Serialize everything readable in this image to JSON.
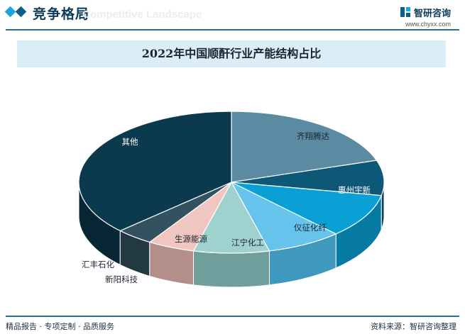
{
  "header": {
    "section_title": "竞争格局",
    "section_subtitle": "Competitive Landscape",
    "brand_name": "智研咨询",
    "brand_url": "www.chyxx.com"
  },
  "chart_data": {
    "type": "pie",
    "title": "2022年中国顺酐行业产能结构占比",
    "slices": [
      {
        "label": "齐翔腾达",
        "value": 20,
        "color": "#5b8aa3",
        "side": "#3f6d86"
      },
      {
        "label": "惠州宇新",
        "value": 8,
        "color": "#0e5877",
        "side": "#0a3e54"
      },
      {
        "label": "仪征化纤",
        "value": 10,
        "color": "#0aa0d6",
        "side": "#077aa3"
      },
      {
        "label": "江宁化工",
        "value": 8,
        "color": "#66c4ec",
        "side": "#3f98bd"
      },
      {
        "label": "生源能源",
        "value": 8,
        "color": "#9fd1cf",
        "side": "#6f9e9c"
      },
      {
        "label": "新阳科技",
        "value": 5,
        "color": "#efc6c0",
        "side": "#b48e88"
      },
      {
        "label": "汇丰石化",
        "value": 4,
        "color": "#33525f",
        "side": "#223842"
      },
      {
        "label": "其他",
        "value": 37,
        "color": "#0b3a4f",
        "side": "#072633"
      }
    ]
  },
  "footer": {
    "left_text": "精品报告 · 专项定制 · 品质服务",
    "right_text": "资料来源：智研咨询整理"
  }
}
